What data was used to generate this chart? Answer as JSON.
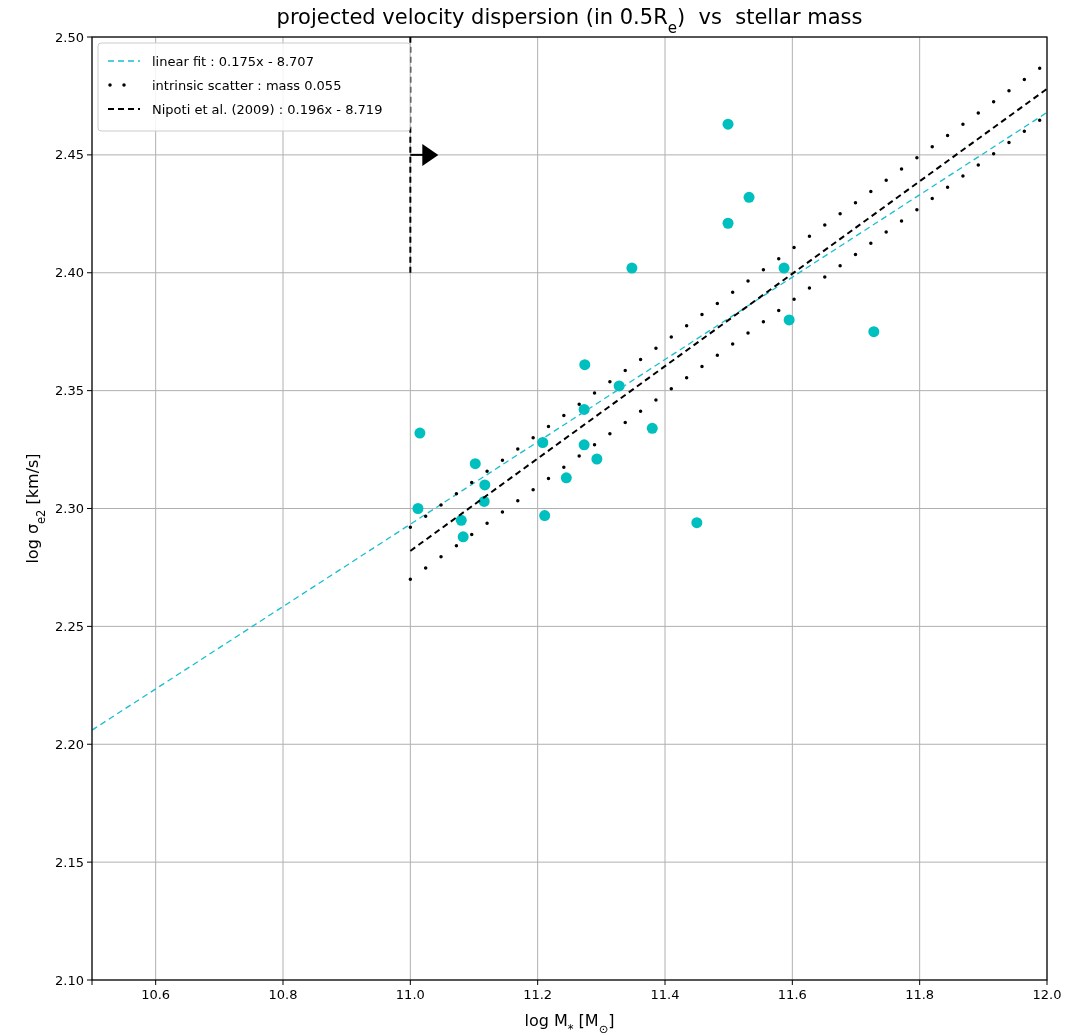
{
  "chart_data": {
    "type": "scatter",
    "title": "projected velocity dispersion (in 0.5R$_{e}$)  vs  stellar mass",
    "xlabel": "log M$_{*}$ [M$_{⊙}$]",
    "ylabel": "log σ$_{e2}$ [km/s]",
    "xlim": [
      10.5,
      12.0
    ],
    "xticks": [
      {
        "value": 10.5,
        "label": null
      },
      10.6,
      10.8,
      {
        "value": 11.0,
        "label": "11.0"
      },
      11.2,
      11.4,
      11.6,
      11.8,
      {
        "value": 12.0,
        "label": "12.0"
      }
    ],
    "ylim": [
      2.1,
      2.5
    ],
    "yticks": [
      {
        "value": 2.1,
        "label": "2.10"
      },
      2.15,
      {
        "value": 2.2,
        "label": "2.20"
      },
      2.25,
      {
        "value": 2.3,
        "label": "2.30"
      },
      2.35,
      {
        "value": 2.4,
        "label": "2.40"
      },
      2.45,
      {
        "value": 2.5,
        "label": "2.50"
      }
    ],
    "grid": true,
    "legend": "top left",
    "series": [
      {
        "color": "#00bfbf",
        "marker": "circle",
        "x": [
          11.015,
          11.012,
          11.102,
          11.117,
          11.116,
          11.08,
          11.083,
          11.208,
          11.211,
          11.245,
          11.274,
          11.273,
          11.273,
          11.293,
          11.328,
          11.38,
          11.348,
          11.45,
          11.499,
          11.499,
          11.532,
          11.587,
          11.595,
          11.728
        ],
        "values": [
          2.332,
          2.3,
          2.319,
          2.31,
          2.303,
          2.295,
          2.288,
          2.328,
          2.297,
          2.313,
          2.361,
          2.342,
          2.327,
          2.321,
          2.352,
          2.334,
          2.402,
          2.294,
          2.463,
          2.421,
          2.432,
          2.402,
          2.38,
          2.375
        ]
      },
      {
        "type": "line",
        "name": "linear fit : 0.175x - 8.707",
        "color": "#17becf",
        "line_style": "dashed",
        "x": [
          10.5,
          12.0
        ],
        "values": [
          2.206,
          2.468
        ]
      },
      {
        "type": "line",
        "name": "intrinsic scatter : mass 0.055",
        "color": "#000000",
        "line_style": "dotted",
        "x": [
          11.0,
          12.0
        ],
        "values": [
          2.292,
          2.489
        ]
      },
      {
        "type": "line",
        "color": "#000000",
        "line_style": "dotted",
        "x": [
          11.0,
          12.0
        ],
        "values": [
          2.27,
          2.467
        ]
      },
      {
        "type": "line",
        "name": "Nipoti et al. (2009) : 0.196x - 8.719",
        "color": "#000000",
        "line_style": "dashed",
        "x": [
          11.0,
          12.0
        ],
        "values": [
          2.282,
          2.478
        ]
      },
      {
        "type": "line",
        "color": "#000000",
        "line_style": "dashed",
        "x": [
          11.0,
          11.0
        ],
        "values": [
          2.4,
          2.5
        ]
      }
    ]
  }
}
